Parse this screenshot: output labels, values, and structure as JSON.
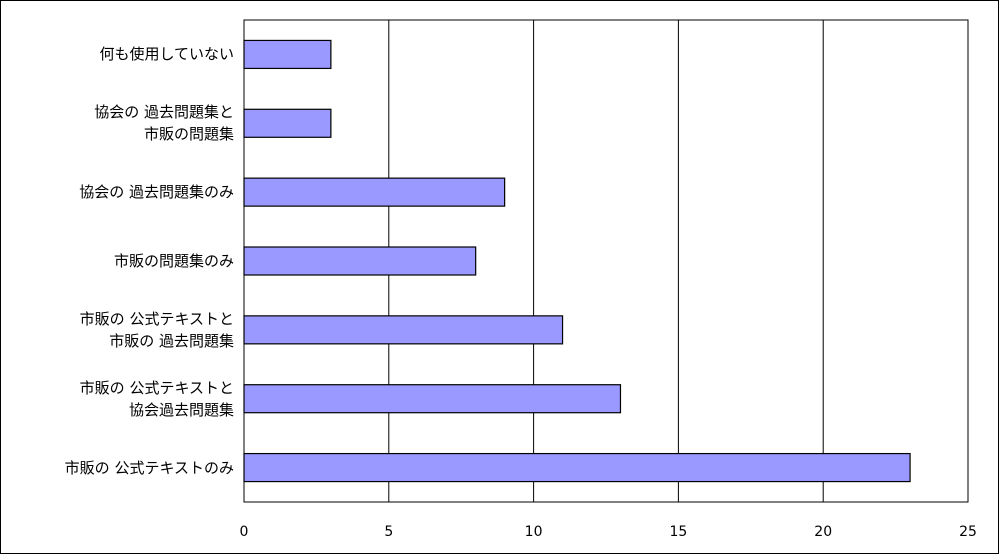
{
  "chart_data": {
    "type": "bar",
    "orientation": "horizontal",
    "categories": [
      "何も使用していない",
      "協会の 過去問題集と\n市販の問題集",
      "協会の 過去問題集のみ",
      "市販の問題集のみ",
      "市販の 公式テキストと\n市販の 過去問題集",
      "市販の 公式テキストと\n協会過去問題集",
      "市販の 公式テキストのみ"
    ],
    "values": [
      3,
      3,
      9,
      8,
      11,
      13,
      23
    ],
    "color": "#9999ff",
    "xlim": [
      0,
      25
    ],
    "xticks": [
      0,
      5,
      10,
      15,
      20,
      25
    ],
    "grid": true
  }
}
